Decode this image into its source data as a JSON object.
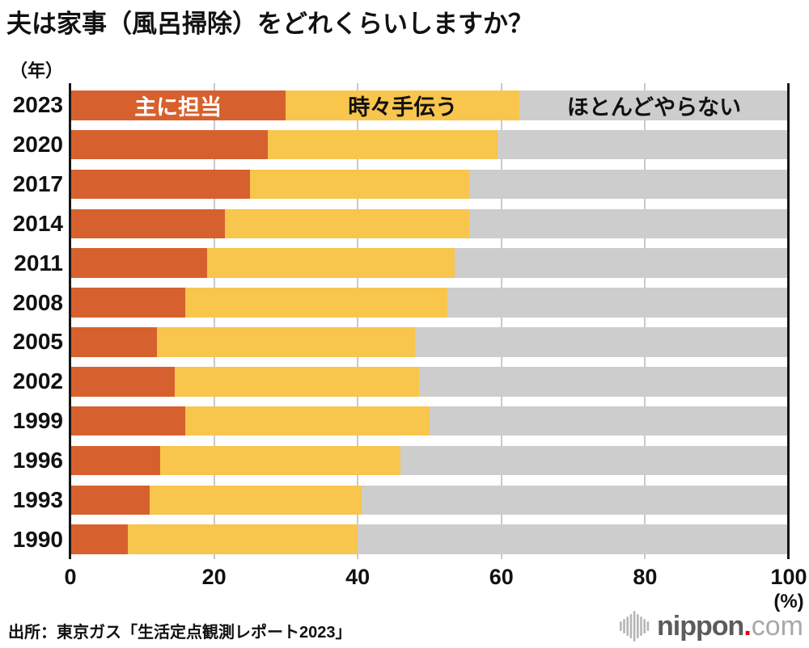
{
  "title": "夫は家事（風呂掃除）をどれくらいしますか？",
  "y_axis_unit": "（年）",
  "x_axis_unit": "(%)",
  "source": "出所：東京ガス「生活定点観測レポート2023」",
  "logo": {
    "name": "nippon",
    "dot": ".",
    "tld": "com"
  },
  "colors": {
    "mainly_responsible": "#d7612e",
    "sometimes_help": "#f8c54d",
    "hardly_does": "#cdcdcd",
    "axis": "#161616",
    "gridline": "#c9c9c9",
    "logo_red": "#e60012",
    "logo_dark_gray": "#5c5c5c",
    "logo_light_gray": "#a8a8a8"
  },
  "chart_data": {
    "type": "bar",
    "orientation": "horizontal",
    "stacked": true,
    "title": "夫は家事（風呂掃除）をどれくらいしますか？",
    "xlabel": "(%)",
    "ylabel": "（年）",
    "xlim": [
      0,
      100
    ],
    "xticks": [
      0,
      20,
      40,
      60,
      80,
      100
    ],
    "grid": true,
    "legend_position": "inside-first-bar",
    "categories": [
      "2023",
      "2020",
      "2017",
      "2014",
      "2011",
      "2008",
      "2005",
      "2002",
      "1999",
      "1996",
      "1993",
      "1990"
    ],
    "series": [
      {
        "name": "主に担当",
        "color": "#d7612e",
        "label_color": "#ffffff",
        "values": [
          30,
          27.5,
          25,
          21.5,
          19,
          16,
          12,
          14.5,
          16,
          12.5,
          11,
          8
        ]
      },
      {
        "name": "時々手伝う",
        "color": "#f8c54d",
        "label_color": "#111111",
        "values": [
          32.5,
          32,
          30.5,
          34,
          34.5,
          36.5,
          36,
          34,
          34,
          33.5,
          29.5,
          32
        ]
      },
      {
        "name": "ほとんどやらない",
        "color": "#cdcdcd",
        "label_color": "#111111",
        "values": [
          37.5,
          40.5,
          44.5,
          44.5,
          46.5,
          47.5,
          52,
          51.5,
          50,
          54,
          59.5,
          60
        ]
      }
    ]
  }
}
